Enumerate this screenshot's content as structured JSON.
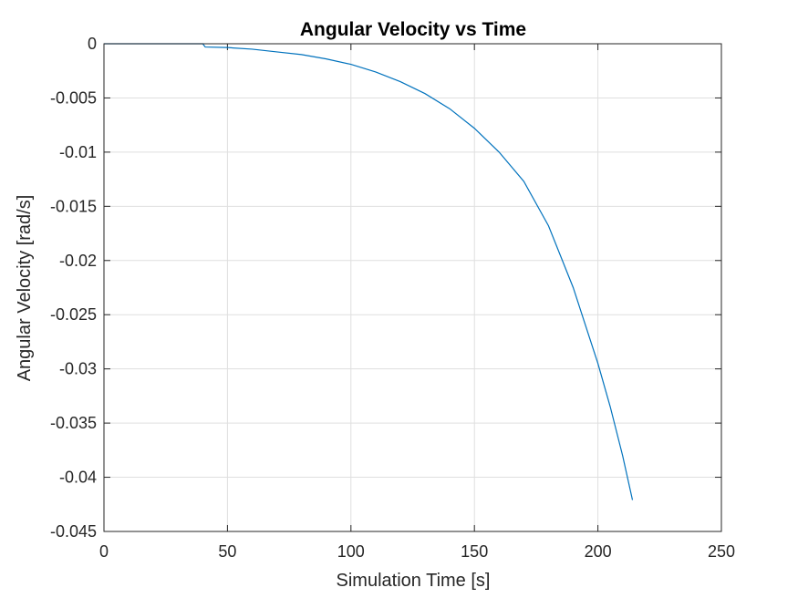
{
  "chart_data": {
    "type": "line",
    "title": "Angular Velocity vs Time",
    "xlabel": "Simulation Time [s]",
    "ylabel": "Angular Velocity [rad/s]",
    "xlim": [
      0,
      250
    ],
    "ylim": [
      -0.045,
      0
    ],
    "xticks": [
      0,
      50,
      100,
      150,
      200,
      250
    ],
    "yticks": [
      0,
      -0.005,
      -0.01,
      -0.015,
      -0.02,
      -0.025,
      -0.03,
      -0.035,
      -0.04,
      -0.045
    ],
    "grid": true,
    "series": [
      {
        "color": "#0072bd",
        "x": [
          0,
          40,
          41,
          50,
          60,
          70,
          80,
          90,
          100,
          110,
          120,
          130,
          140,
          150,
          160,
          170,
          180,
          190,
          200,
          205,
          210,
          214
        ],
        "y": [
          0,
          0,
          -0.0003,
          -0.00035,
          -0.0005,
          -0.00075,
          -0.001,
          -0.0014,
          -0.0019,
          -0.0026,
          -0.0035,
          -0.0046,
          -0.006,
          -0.0078,
          -0.01,
          -0.0127,
          -0.0168,
          -0.0225,
          -0.0295,
          -0.0335,
          -0.038,
          -0.0421
        ]
      }
    ]
  }
}
